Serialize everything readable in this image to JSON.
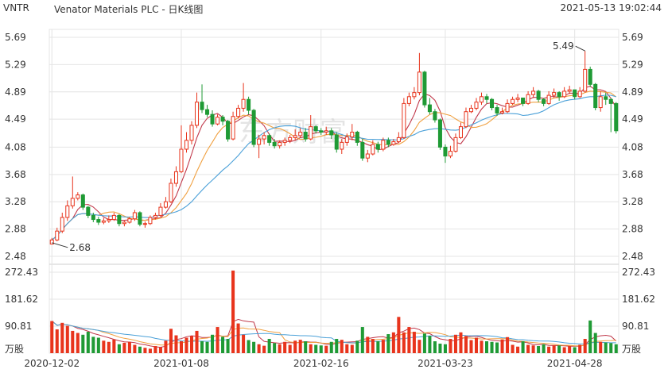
{
  "header": {
    "ticker": "VNTR",
    "title": "Venator Materials PLC - 日K线图",
    "datetime": "2021-05-13 19:02:44"
  },
  "watermark": "东方财富",
  "colors": {
    "up": "#e8341c",
    "down": "#1f9a35",
    "ma5": "#c0384a",
    "ma10": "#f0a040",
    "ma20": "#4aa0d8",
    "grid": "#e4e4e4"
  },
  "chart_data": [
    {
      "type": "candlestick",
      "y_ticks": [
        "5.69",
        "5.29",
        "4.89",
        "4.49",
        "4.08",
        "3.68",
        "3.28",
        "2.88",
        "2.48"
      ],
      "ylim": [
        2.48,
        5.69
      ],
      "annotations": [
        {
          "label": "5.49",
          "note": "period high"
        },
        {
          "label": "2.68",
          "note": "period low"
        }
      ],
      "closes": [
        2.72,
        2.85,
        3.05,
        3.22,
        3.33,
        3.38,
        3.2,
        3.08,
        3.02,
        2.98,
        3.0,
        3.02,
        3.08,
        2.96,
        2.98,
        3.03,
        3.12,
        2.95,
        2.96,
        3.05,
        3.08,
        3.2,
        3.28,
        3.55,
        3.72,
        4.05,
        4.18,
        4.4,
        4.74,
        4.63,
        4.56,
        4.42,
        4.52,
        4.46,
        4.2,
        4.53,
        4.65,
        4.78,
        4.62,
        4.12,
        4.2,
        4.25,
        4.15,
        4.1,
        4.15,
        4.18,
        4.22,
        4.25,
        4.3,
        4.2,
        4.38,
        4.32,
        4.3,
        4.32,
        4.26,
        4.05,
        4.15,
        4.23,
        4.3,
        4.15,
        3.92,
        3.98,
        4.12,
        4.05,
        4.18,
        4.12,
        4.16,
        4.22,
        4.72,
        4.82,
        4.88,
        5.18,
        4.7,
        4.6,
        4.48,
        4.08,
        3.95,
        4.02,
        4.22,
        4.38,
        4.6,
        4.65,
        4.74,
        4.82,
        4.78,
        4.66,
        4.58,
        4.6,
        4.72,
        4.78,
        4.8,
        4.72,
        4.85,
        4.9,
        4.78,
        4.72,
        4.84,
        4.88,
        4.82,
        4.9,
        4.92,
        4.82,
        4.9,
        5.22,
        5.0,
        4.66,
        4.82,
        4.78,
        4.72,
        4.32
      ],
      "opens": [
        2.66,
        2.72,
        2.85,
        3.05,
        3.22,
        3.33,
        3.38,
        3.2,
        3.08,
        3.02,
        2.98,
        3.0,
        3.02,
        3.08,
        2.96,
        2.98,
        3.03,
        3.12,
        2.95,
        2.96,
        3.05,
        3.08,
        3.2,
        3.28,
        3.55,
        3.72,
        4.05,
        4.18,
        4.4,
        4.74,
        4.63,
        4.56,
        4.42,
        4.52,
        4.46,
        4.2,
        4.53,
        4.65,
        4.78,
        4.62,
        4.12,
        4.2,
        4.25,
        4.15,
        4.1,
        4.15,
        4.18,
        4.22,
        4.25,
        4.3,
        4.2,
        4.38,
        4.32,
        4.3,
        4.32,
        4.26,
        4.05,
        4.15,
        4.23,
        4.3,
        4.15,
        3.92,
        3.98,
        4.12,
        4.05,
        4.18,
        4.12,
        4.16,
        4.22,
        4.72,
        4.82,
        4.88,
        5.18,
        4.7,
        4.6,
        4.48,
        4.08,
        3.95,
        4.02,
        4.22,
        4.38,
        4.6,
        4.65,
        4.74,
        4.82,
        4.78,
        4.66,
        4.58,
        4.6,
        4.72,
        4.78,
        4.8,
        4.72,
        4.85,
        4.9,
        4.78,
        4.72,
        4.84,
        4.88,
        4.82,
        4.9,
        4.92,
        4.82,
        4.9,
        5.22,
        5.0,
        4.66,
        4.82,
        4.78,
        4.72
      ],
      "highs": [
        2.75,
        2.9,
        3.12,
        3.3,
        3.65,
        3.42,
        3.4,
        3.22,
        3.12,
        3.06,
        3.04,
        3.08,
        3.12,
        3.1,
        3.0,
        3.06,
        3.16,
        3.14,
        2.99,
        3.08,
        3.12,
        3.26,
        3.35,
        3.62,
        3.8,
        4.4,
        4.3,
        4.46,
        4.88,
        5.0,
        4.7,
        4.62,
        4.56,
        4.55,
        4.48,
        4.6,
        4.7,
        5.02,
        4.82,
        4.64,
        4.26,
        4.3,
        4.28,
        4.2,
        4.18,
        4.22,
        4.26,
        4.34,
        4.36,
        4.36,
        4.55,
        4.4,
        4.36,
        4.38,
        4.36,
        4.3,
        4.2,
        4.28,
        4.42,
        4.32,
        4.2,
        4.04,
        4.18,
        4.16,
        4.22,
        4.22,
        4.2,
        4.3,
        4.8,
        4.88,
        4.96,
        5.46,
        5.2,
        4.8,
        4.64,
        4.5,
        4.12,
        4.1,
        4.28,
        4.44,
        4.66,
        4.7,
        4.8,
        4.88,
        4.86,
        4.8,
        4.7,
        4.66,
        4.78,
        4.82,
        4.86,
        4.8,
        4.9,
        4.96,
        4.92,
        4.8,
        4.9,
        4.94,
        4.9,
        4.96,
        4.98,
        4.92,
        4.96,
        5.49,
        5.26,
        5.02,
        4.9,
        4.88,
        4.8,
        4.74
      ],
      "lows": [
        2.68,
        2.7,
        2.82,
        3.0,
        3.18,
        3.3,
        3.16,
        3.04,
        2.98,
        2.94,
        2.95,
        2.97,
        3.0,
        2.92,
        2.92,
        2.96,
        3.0,
        2.92,
        2.9,
        2.94,
        3.02,
        3.06,
        3.18,
        3.26,
        3.5,
        3.7,
        4.0,
        4.12,
        4.36,
        4.58,
        4.52,
        4.38,
        4.4,
        4.4,
        4.16,
        4.18,
        4.5,
        4.6,
        4.56,
        4.08,
        3.92,
        4.12,
        4.1,
        4.06,
        4.06,
        4.1,
        4.14,
        4.18,
        4.22,
        4.16,
        4.18,
        4.28,
        4.26,
        4.26,
        4.2,
        4.0,
        3.98,
        4.1,
        4.18,
        4.1,
        3.88,
        3.86,
        3.96,
        4.0,
        4.02,
        4.08,
        4.1,
        4.14,
        4.2,
        4.68,
        4.78,
        4.84,
        4.66,
        4.56,
        4.44,
        4.04,
        3.85,
        3.92,
        4.0,
        4.2,
        4.36,
        4.58,
        4.62,
        4.7,
        4.72,
        4.62,
        4.54,
        4.56,
        4.58,
        4.7,
        4.74,
        4.68,
        4.7,
        4.8,
        4.74,
        4.68,
        4.7,
        4.8,
        4.76,
        4.8,
        4.86,
        4.78,
        4.8,
        4.88,
        4.96,
        4.62,
        4.6,
        4.7,
        4.3,
        4.28
      ],
      "volumes": [
        108,
        80,
        102,
        92,
        75,
        68,
        62,
        72,
        55,
        52,
        42,
        38,
        46,
        30,
        35,
        38,
        28,
        22,
        18,
        15,
        24,
        20,
        42,
        82,
        60,
        40,
        52,
        58,
        75,
        40,
        38,
        62,
        88,
        55,
        48,
        278,
        100,
        62,
        44,
        38,
        30,
        25,
        48,
        34,
        30,
        38,
        28,
        42,
        45,
        40,
        30,
        28,
        26,
        25,
        38,
        48,
        45,
        30,
        28,
        42,
        88,
        55,
        48,
        40,
        45,
        64,
        70,
        122,
        70,
        88,
        72,
        45,
        66,
        58,
        40,
        32,
        30,
        48,
        62,
        70,
        58,
        44,
        52,
        42,
        40,
        38,
        36,
        46,
        54,
        28,
        22,
        40,
        28,
        26,
        24,
        30,
        22,
        26,
        26,
        20,
        24,
        20,
        28,
        48,
        110,
        68,
        38,
        36,
        34,
        30
      ],
      "vol_ticks": [
        "272.43",
        "181.62",
        "90.81"
      ],
      "vol_unit": "万股",
      "x_ticks": [
        "2020-12-02",
        "2021-01-08",
        "2021-02-16",
        "2021-03-23",
        "2021-04-28"
      ]
    }
  ]
}
